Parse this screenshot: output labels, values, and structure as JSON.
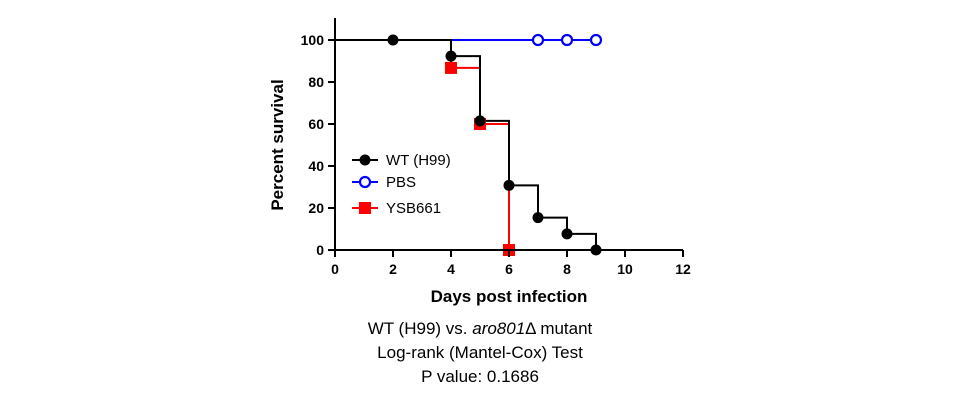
{
  "chart_data": {
    "type": "line",
    "step": true,
    "xlabel": "Days post infection",
    "ylabel": "Percent survival",
    "xlim": [
      0,
      12
    ],
    "ylim": [
      0,
      100
    ],
    "xticks": [
      0,
      2,
      4,
      6,
      8,
      10,
      12
    ],
    "yticks": [
      0,
      20,
      40,
      60,
      80,
      100
    ],
    "grid": false,
    "legend_position": "center-left",
    "series": [
      {
        "name": "WT (H99)",
        "color": "#000000",
        "marker": "filled-circle",
        "step_x": [
          0,
          4,
          5,
          6,
          7,
          8,
          9
        ],
        "step_y": [
          100,
          92.3,
          61.5,
          30.8,
          15.4,
          7.7,
          0
        ],
        "markers": [
          [
            2,
            100
          ],
          [
            4,
            92.3
          ],
          [
            5,
            61.5
          ],
          [
            6,
            30.8
          ],
          [
            7,
            15.4
          ],
          [
            8,
            7.7
          ],
          [
            9,
            0
          ]
        ],
        "x_end": 10
      },
      {
        "name": "PBS",
        "color": "#0000ff",
        "marker": "open-circle",
        "step_x": [
          0
        ],
        "step_y": [
          100
        ],
        "markers": [
          [
            7,
            100
          ],
          [
            8,
            100
          ],
          [
            9,
            100
          ]
        ],
        "x_end": 9
      },
      {
        "name": "YSB661",
        "color": "#ff0000",
        "marker": "filled-square",
        "step_x": [
          0,
          4,
          5,
          6
        ],
        "step_y": [
          100,
          86.7,
          60,
          0
        ],
        "markers": [
          [
            4,
            86.7
          ],
          [
            5,
            60
          ],
          [
            6,
            0
          ]
        ],
        "x_end": 6
      }
    ]
  },
  "caption": {
    "line1_prefix": "WT (H99) vs. ",
    "line1_italic": "aro801",
    "line1_suffix": "Δ mutant",
    "line2": "Log-rank (Mantel-Cox) Test",
    "line3": "P value: 0.1686"
  }
}
